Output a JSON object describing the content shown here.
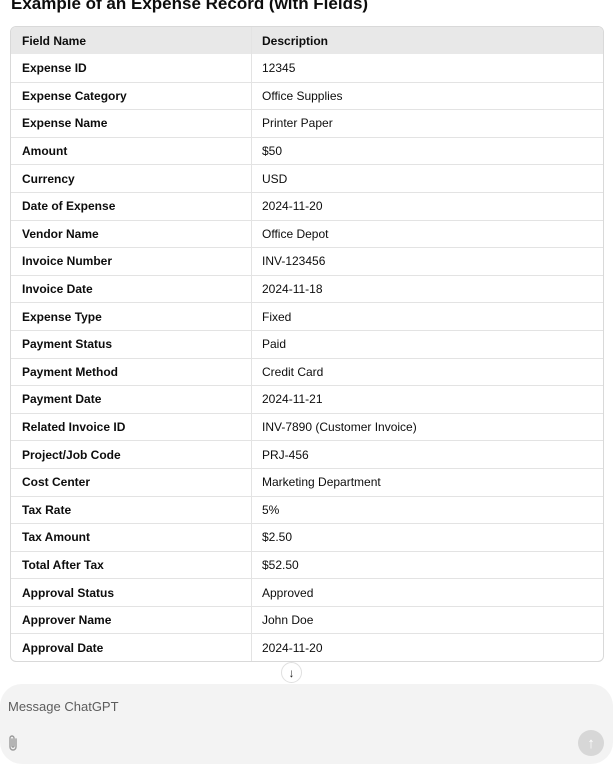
{
  "title": "Example of an Expense Record (with Fields)",
  "table": {
    "headers": [
      "Field Name",
      "Description"
    ],
    "rows": [
      [
        "Expense ID",
        "12345"
      ],
      [
        "Expense Category",
        "Office Supplies"
      ],
      [
        "Expense Name",
        "Printer Paper"
      ],
      [
        "Amount",
        "$50"
      ],
      [
        "Currency",
        "USD"
      ],
      [
        "Date of Expense",
        "2024-11-20"
      ],
      [
        "Vendor Name",
        "Office Depot"
      ],
      [
        "Invoice Number",
        "INV-123456"
      ],
      [
        "Invoice Date",
        "2024-11-18"
      ],
      [
        "Expense Type",
        "Fixed"
      ],
      [
        "Payment Status",
        "Paid"
      ],
      [
        "Payment Method",
        "Credit Card"
      ],
      [
        "Payment Date",
        "2024-11-21"
      ],
      [
        "Related Invoice ID",
        "INV-7890 (Customer Invoice)"
      ],
      [
        "Project/Job Code",
        "PRJ-456"
      ],
      [
        "Cost Center",
        "Marketing Department"
      ],
      [
        "Tax Rate",
        "5%"
      ],
      [
        "Tax Amount",
        "$2.50"
      ],
      [
        "Total After Tax",
        "$52.50"
      ],
      [
        "Approval Status",
        "Approved"
      ],
      [
        "Approver Name",
        "John Doe"
      ],
      [
        "Approval Date",
        "2024-11-20"
      ]
    ]
  },
  "scroll_down_icon": "arrow-down-icon",
  "composer": {
    "placeholder": "Message ChatGPT",
    "attach_icon": "paperclip-icon",
    "send_icon": "arrow-up-icon"
  }
}
